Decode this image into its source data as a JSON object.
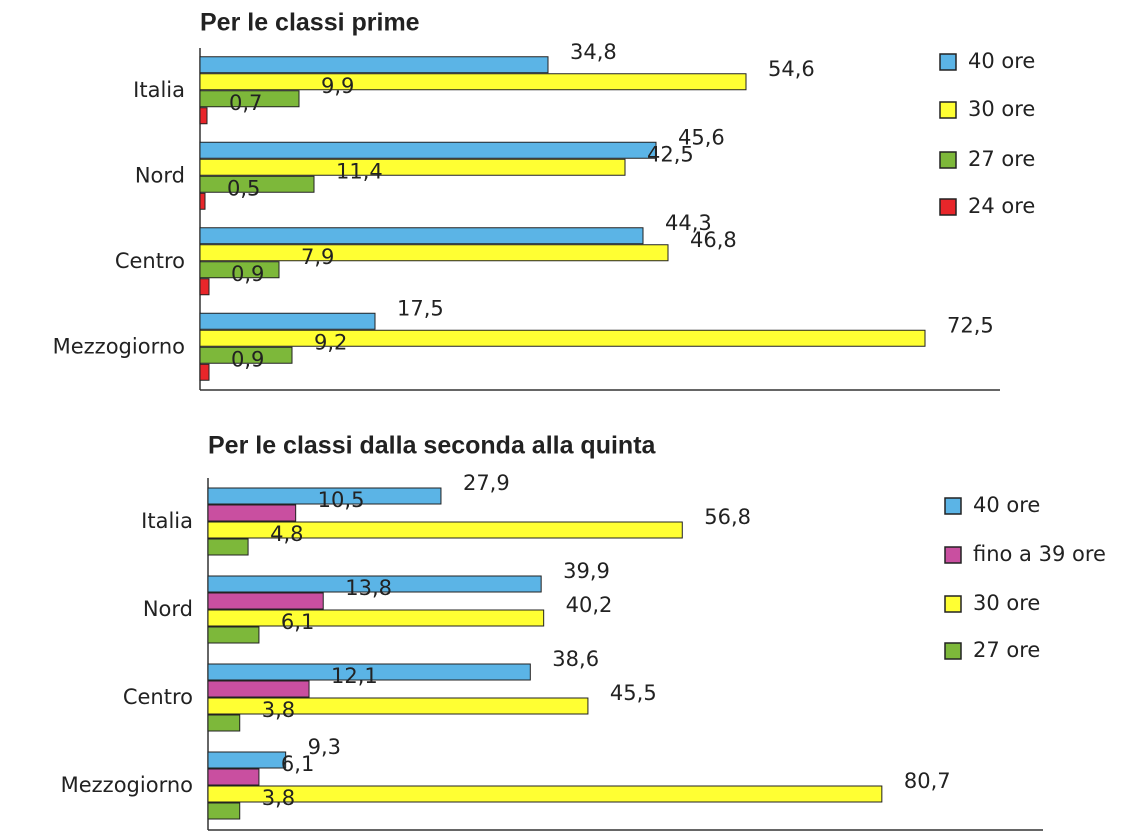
{
  "chart_data": [
    {
      "type": "bar",
      "orientation": "horizontal",
      "title": "Per le classi prime",
      "categories": [
        "Italia",
        "Nord",
        "Centro",
        "Mezzogiorno"
      ],
      "xlim": [
        0,
        80
      ],
      "legend": "right",
      "series": [
        {
          "name": "40 ore",
          "color": "#5bb4e6",
          "values": [
            34.8,
            45.6,
            44.3,
            17.5
          ],
          "value_labels": [
            "34,8",
            "45,6",
            "44,3",
            "17,5"
          ]
        },
        {
          "name": "30 ore",
          "color": "#ffff33",
          "values": [
            54.6,
            42.5,
            46.8,
            72.5
          ],
          "value_labels": [
            "54,6",
            "42,5",
            "46,8",
            "72,5"
          ]
        },
        {
          "name": "27 ore",
          "color": "#7db83a",
          "values": [
            9.9,
            11.4,
            7.9,
            9.2
          ],
          "value_labels": [
            "9,9",
            "11,4",
            "7,9",
            "9,2"
          ]
        },
        {
          "name": "24 ore",
          "color": "#e8262a",
          "values": [
            0.7,
            0.5,
            0.9,
            0.9
          ],
          "value_labels": [
            "0,7",
            "0,5",
            "0,9",
            "0,9"
          ]
        }
      ]
    },
    {
      "type": "bar",
      "orientation": "horizontal",
      "title": "Per le classi dalla seconda alla quinta",
      "categories": [
        "Italia",
        "Nord",
        "Centro",
        "Mezzogiorno"
      ],
      "xlim": [
        0,
        100
      ],
      "legend": "right",
      "series": [
        {
          "name": "40 ore",
          "color": "#5bb4e6",
          "values": [
            27.9,
            39.9,
            38.6,
            9.3
          ],
          "value_labels": [
            "27,9",
            "39,9",
            "38,6",
            "9,3"
          ]
        },
        {
          "name": "fino a 39 ore",
          "color": "#c94fa0",
          "values": [
            10.5,
            13.8,
            12.1,
            6.1
          ],
          "value_labels": [
            "10,5",
            "13,8",
            "12,1",
            "6,1"
          ]
        },
        {
          "name": "30 ore",
          "color": "#ffff33",
          "values": [
            56.8,
            40.2,
            45.5,
            80.7
          ],
          "value_labels": [
            "56,8",
            "40,2",
            "45,5",
            "80,7"
          ]
        },
        {
          "name": "27 ore",
          "color": "#7db83a",
          "values": [
            4.8,
            6.1,
            3.8,
            3.8
          ],
          "value_labels": [
            "4,8",
            "6,1",
            "3,8",
            "3,8"
          ]
        }
      ]
    }
  ]
}
